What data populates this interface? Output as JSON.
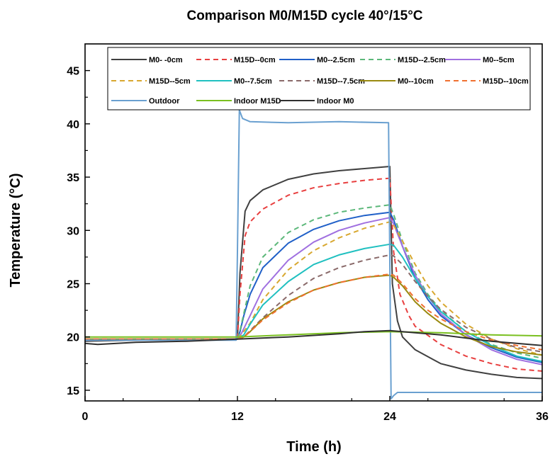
{
  "chart_data": {
    "type": "line",
    "title": "Comparison M0/M15D cycle 40°/15°C",
    "xlabel": "Time (h)",
    "ylabel": "Temperature (°C)",
    "xlim": [
      0,
      36
    ],
    "ylim": [
      14,
      47.5
    ],
    "xticks": [
      0,
      12,
      24,
      36
    ],
    "yticks": [
      15,
      20,
      25,
      30,
      35,
      40,
      45
    ],
    "grid": false,
    "legend_position": "top",
    "series": [
      {
        "name": "M0- -0cm",
        "color": "#404040",
        "dash": "solid",
        "x": [
          0,
          4,
          8,
          12,
          12.2,
          12.6,
          13,
          14,
          16,
          18,
          20,
          22,
          24,
          24.2,
          24.6,
          25,
          26,
          28,
          30,
          32,
          34,
          36
        ],
        "y": [
          19.6,
          19.7,
          19.8,
          19.8,
          26,
          31.8,
          32.8,
          33.8,
          34.8,
          35.3,
          35.6,
          35.8,
          36,
          25,
          21.5,
          20,
          18.8,
          17.5,
          16.9,
          16.5,
          16.2,
          16.1
        ]
      },
      {
        "name": "M15D--0cm",
        "color": "#e84040",
        "dash": "dash",
        "x": [
          0,
          4,
          8,
          12,
          12.2,
          12.6,
          13,
          14,
          16,
          18,
          20,
          22,
          24,
          24.3,
          24.8,
          25.5,
          26,
          28,
          30,
          32,
          34,
          36
        ],
        "y": [
          19.8,
          19.8,
          19.8,
          19.8,
          24,
          29.5,
          30.8,
          32,
          33.3,
          34,
          34.4,
          34.7,
          34.9,
          28,
          24,
          22,
          21,
          19.3,
          18.2,
          17.5,
          17,
          16.8
        ]
      },
      {
        "name": "M0--2.5cm",
        "color": "#2060c8",
        "dash": "solid",
        "x": [
          0,
          4,
          8,
          12,
          12.2,
          12.5,
          13,
          14,
          16,
          18,
          20,
          22,
          24,
          24.3,
          25,
          26,
          27,
          28,
          30,
          32,
          34,
          36
        ],
        "y": [
          19.7,
          19.8,
          19.8,
          19.8,
          20.5,
          22,
          24,
          26.5,
          28.8,
          30.1,
          30.9,
          31.4,
          31.7,
          31,
          28.5,
          25.5,
          23.5,
          22,
          20.2,
          19,
          18.1,
          17.6
        ]
      },
      {
        "name": "M15D--2.5cm",
        "color": "#5cb87a",
        "dash": "dash",
        "x": [
          0,
          4,
          8,
          12,
          12.2,
          12.5,
          13,
          14,
          16,
          18,
          20,
          22,
          24,
          24.3,
          25,
          26,
          27,
          28,
          30,
          32,
          34,
          36
        ],
        "y": [
          19.8,
          19.8,
          19.8,
          19.8,
          20.6,
          22.2,
          24.8,
          27.5,
          29.8,
          31,
          31.7,
          32.1,
          32.4,
          31.5,
          29,
          26,
          24,
          22.5,
          20.5,
          19.3,
          18.5,
          18
        ]
      },
      {
        "name": "M0--5cm",
        "color": "#a070e0",
        "dash": "solid",
        "x": [
          0,
          4,
          8,
          12,
          12.3,
          13,
          14,
          16,
          18,
          20,
          22,
          24,
          24.3,
          25,
          26,
          27,
          28,
          30,
          32,
          34,
          36
        ],
        "y": [
          19.7,
          19.8,
          19.8,
          19.8,
          20.3,
          22,
          24.5,
          27.2,
          28.9,
          30,
          30.7,
          31.2,
          30.6,
          28.5,
          25.8,
          23.8,
          22.2,
          20.2,
          18.8,
          17.9,
          17.4
        ]
      },
      {
        "name": "M15D--5cm",
        "color": "#d8a830",
        "dash": "dash",
        "x": [
          0,
          4,
          8,
          12,
          12.3,
          13,
          14,
          16,
          18,
          20,
          22,
          24,
          24.3,
          25,
          26,
          27,
          28,
          30,
          32,
          34,
          36
        ],
        "y": [
          19.8,
          19.8,
          19.8,
          19.8,
          20.2,
          21.3,
          23.5,
          26.3,
          28.1,
          29.3,
          30.2,
          30.8,
          30.5,
          29,
          26.8,
          24.8,
          23.3,
          21.2,
          19.8,
          18.9,
          18.3
        ]
      },
      {
        "name": "M0--7.5cm",
        "color": "#20c0c0",
        "dash": "solid",
        "x": [
          0,
          4,
          8,
          12,
          12.5,
          13,
          14,
          16,
          18,
          20,
          22,
          24,
          24.3,
          25,
          26,
          27,
          28,
          30,
          32,
          34,
          36
        ],
        "y": [
          19.8,
          19.8,
          19.8,
          19.8,
          20.2,
          21.2,
          23,
          25.2,
          26.8,
          27.7,
          28.3,
          28.7,
          28.6,
          27.5,
          25.5,
          23.8,
          22.4,
          20.5,
          19.2,
          18.2,
          17.7
        ]
      },
      {
        "name": "M15D--7.5cm",
        "color": "#8a6a6a",
        "dash": "dash",
        "x": [
          0,
          4,
          8,
          12,
          12.5,
          13,
          14,
          16,
          18,
          20,
          22,
          24,
          24.3,
          25,
          26,
          27,
          28,
          30,
          32,
          34,
          36
        ],
        "y": [
          19.8,
          19.8,
          19.8,
          19.8,
          20,
          20.6,
          21.8,
          23.9,
          25.5,
          26.5,
          27.2,
          27.7,
          27.6,
          26.8,
          25.2,
          23.8,
          22.6,
          20.9,
          19.8,
          19,
          18.6
        ]
      },
      {
        "name": "M0--10cm",
        "color": "#9a8a10",
        "dash": "solid",
        "x": [
          0,
          4,
          8,
          12,
          12.5,
          13,
          14,
          16,
          18,
          20,
          22,
          24,
          24.3,
          25,
          26,
          27,
          28,
          30,
          32,
          34,
          36
        ],
        "y": [
          19.8,
          19.8,
          19.8,
          19.8,
          20,
          20.5,
          21.7,
          23.3,
          24.4,
          25.1,
          25.6,
          25.8,
          25.6,
          24.8,
          23.3,
          22.2,
          21.3,
          20,
          19.1,
          18.6,
          18.3
        ]
      },
      {
        "name": "M15D--10cm",
        "color": "#f07030",
        "dash": "dash",
        "x": [
          0,
          4,
          8,
          12,
          12.5,
          13,
          14,
          16,
          18,
          20,
          22,
          24,
          24.3,
          25,
          26,
          27,
          28,
          30,
          32,
          34,
          36
        ],
        "y": [
          19.8,
          19.8,
          19.8,
          19.8,
          20,
          20.5,
          21.6,
          23.2,
          24.4,
          25.1,
          25.6,
          25.9,
          25.8,
          25,
          23.6,
          22.5,
          21.7,
          20.5,
          19.7,
          19.2,
          18.8
        ]
      },
      {
        "name": "Outdoor",
        "color": "#6aa0d0",
        "dash": "solid",
        "x": [
          0,
          4,
          8,
          11.9,
          12,
          12.15,
          12.4,
          13,
          16,
          20,
          23.9,
          24,
          24.1,
          24.3,
          24.6,
          26,
          30,
          34,
          36
        ],
        "y": [
          19.7,
          19.7,
          19.7,
          19.7,
          28,
          41.3,
          40.5,
          40.2,
          40.1,
          40.2,
          40.1,
          27,
          14.2,
          14.5,
          14.8,
          14.8,
          14.8,
          14.8,
          14.8
        ]
      },
      {
        "name": "Indoor M15D",
        "color": "#7ac020",
        "dash": "solid",
        "x": [
          0,
          4,
          8,
          12,
          16,
          20,
          24,
          28,
          32,
          36
        ],
        "y": [
          20,
          20,
          20,
          20,
          20.2,
          20.4,
          20.5,
          20.4,
          20.2,
          20.1
        ]
      },
      {
        "name": "Indoor M0",
        "color": "#303030",
        "dash": "solid",
        "x": [
          0,
          1,
          4,
          8,
          12,
          16,
          20,
          22,
          24,
          26,
          28,
          30,
          32,
          34,
          36
        ],
        "y": [
          19.4,
          19.3,
          19.5,
          19.6,
          19.8,
          20,
          20.3,
          20.5,
          20.6,
          20.4,
          20.2,
          19.9,
          19.6,
          19.4,
          19.2
        ]
      }
    ]
  }
}
